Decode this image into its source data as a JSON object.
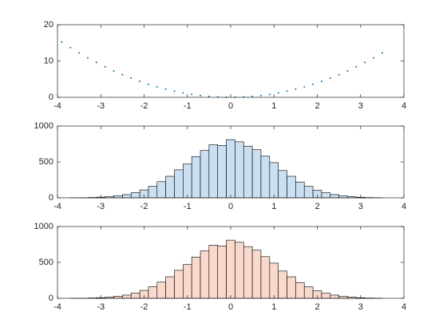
{
  "chart_data": [
    {
      "type": "scatter",
      "color": "#0072bd",
      "x": [
        -3.9,
        -3.7,
        -3.5,
        -3.3,
        -3.1,
        -2.9,
        -2.7,
        -2.5,
        -2.3,
        -2.1,
        -1.9,
        -1.7,
        -1.5,
        -1.3,
        -1.1,
        -0.9,
        -0.7,
        -0.5,
        -0.3,
        -0.1,
        0.1,
        0.3,
        0.5,
        0.7,
        0.9,
        1.1,
        1.3,
        1.5,
        1.7,
        1.9,
        2.1,
        2.3,
        2.5,
        2.7,
        2.9,
        3.1,
        3.3,
        3.5
      ],
      "values": [
        15.21,
        13.69,
        12.25,
        10.89,
        9.61,
        8.41,
        7.29,
        6.25,
        5.29,
        4.41,
        3.61,
        2.89,
        2.25,
        1.69,
        1.21,
        0.81,
        0.49,
        0.25,
        0.09,
        0.01,
        0.01,
        0.09,
        0.25,
        0.49,
        0.81,
        1.21,
        1.69,
        2.25,
        2.89,
        3.61,
        4.41,
        5.29,
        6.25,
        7.29,
        8.41,
        9.61,
        10.89,
        12.25
      ],
      "xlim": [
        -4,
        4
      ],
      "xticks": [
        -4,
        -3,
        -2,
        -1,
        0,
        1,
        2,
        3,
        4
      ],
      "ylim": [
        0,
        20
      ],
      "yticks": [
        0,
        10,
        20
      ]
    },
    {
      "type": "histogram",
      "color": "#cadff1",
      "bins": [
        -3.9,
        -3.7,
        -3.5,
        -3.3,
        -3.1,
        -2.9,
        -2.7,
        -2.5,
        -2.3,
        -2.1,
        -1.9,
        -1.7,
        -1.5,
        -1.3,
        -1.1,
        -0.9,
        -0.7,
        -0.5,
        -0.3,
        -0.1,
        0.1,
        0.3,
        0.5,
        0.7,
        0.9,
        1.1,
        1.3,
        1.5,
        1.7,
        1.9,
        2.1,
        2.3,
        2.5,
        2.7,
        2.9,
        3.1,
        3.3,
        3.5
      ],
      "values": [
        0,
        1,
        2,
        5,
        9,
        16,
        30,
        45,
        72,
        110,
        160,
        225,
        300,
        390,
        470,
        575,
        660,
        740,
        730,
        810,
        780,
        720,
        670,
        580,
        490,
        380,
        300,
        220,
        160,
        105,
        70,
        45,
        27,
        16,
        8,
        4,
        2
      ],
      "xlim": [
        -4,
        4
      ],
      "xticks": [
        -4,
        -3,
        -2,
        -1,
        0,
        1,
        2,
        3,
        4
      ],
      "ylim": [
        0,
        1000
      ],
      "yticks": [
        0,
        500,
        1000
      ]
    },
    {
      "type": "histogram",
      "color": "#f8d9cb",
      "bins": [
        -3.9,
        -3.7,
        -3.5,
        -3.3,
        -3.1,
        -2.9,
        -2.7,
        -2.5,
        -2.3,
        -2.1,
        -1.9,
        -1.7,
        -1.5,
        -1.3,
        -1.1,
        -0.9,
        -0.7,
        -0.5,
        -0.3,
        -0.1,
        0.1,
        0.3,
        0.5,
        0.7,
        0.9,
        1.1,
        1.3,
        1.5,
        1.7,
        1.9,
        2.1,
        2.3,
        2.5,
        2.7,
        2.9,
        3.1,
        3.3,
        3.5
      ],
      "values": [
        0,
        1,
        2,
        5,
        9,
        16,
        30,
        45,
        72,
        110,
        160,
        225,
        300,
        390,
        470,
        575,
        660,
        740,
        730,
        810,
        780,
        720,
        670,
        580,
        490,
        380,
        300,
        220,
        160,
        105,
        70,
        45,
        27,
        16,
        8,
        4,
        2
      ],
      "xlim": [
        -4,
        4
      ],
      "xticks": [
        -4,
        -3,
        -2,
        -1,
        0,
        1,
        2,
        3,
        4
      ],
      "ylim": [
        0,
        1000
      ],
      "yticks": [
        0,
        500,
        1000
      ]
    }
  ]
}
